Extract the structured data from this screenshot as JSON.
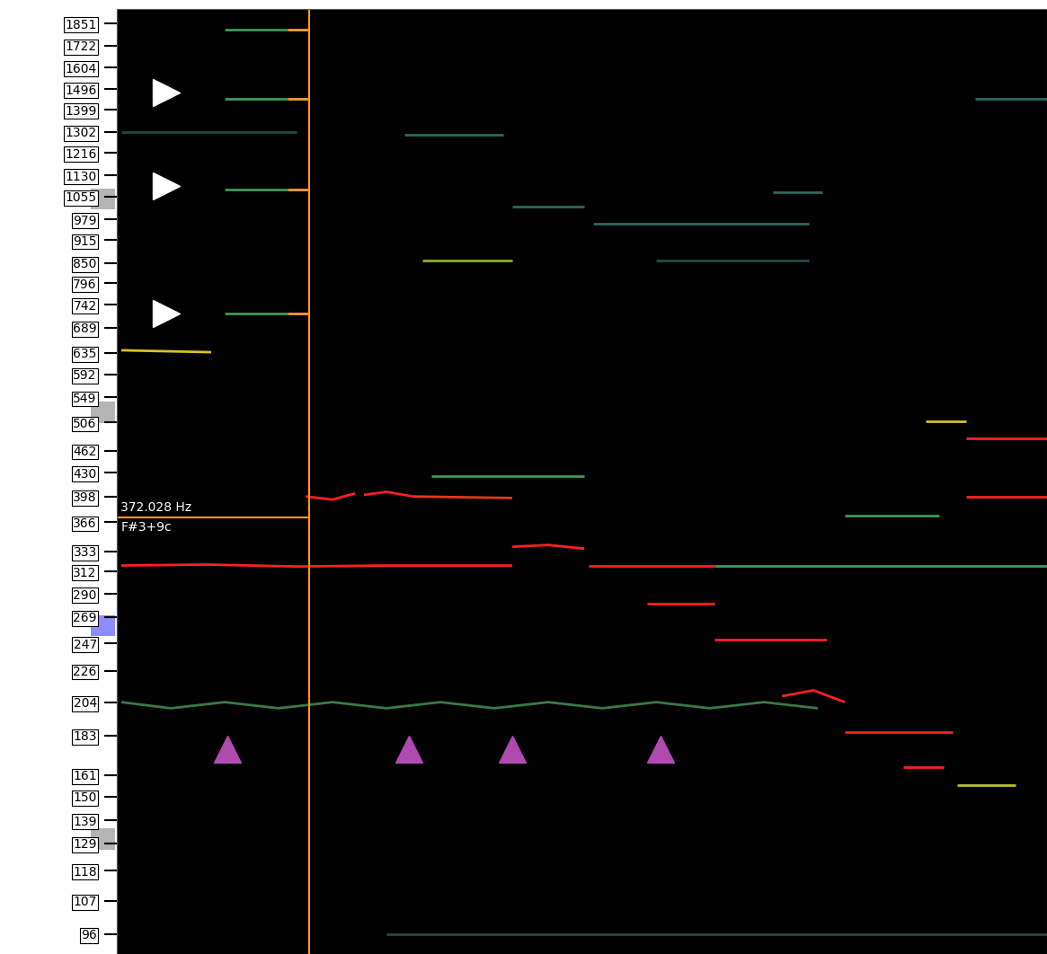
{
  "chart_data": {
    "type": "pitch_spectrogram",
    "log": "y",
    "tick_labels": "y",
    "grid": false,
    "xlim": [
      0,
      1035
    ],
    "ylim": [
      90,
      1940
    ],
    "yticks": [
      1851,
      1722,
      1604,
      1496,
      1399,
      1302,
      1216,
      1130,
      1055,
      979,
      915,
      850,
      796,
      742,
      689,
      635,
      592,
      549,
      506,
      462,
      430,
      398,
      366,
      333,
      312,
      290,
      269,
      247,
      226,
      204,
      183,
      161,
      150,
      139,
      129,
      118,
      107,
      96
    ],
    "highlighted_keys": [
      {
        "value": 1046.5,
        "color": "#b4b4b4"
      },
      {
        "value": 523.3,
        "color": "#b4b4b4"
      },
      {
        "value": 261.6,
        "color": "#8c8cff"
      },
      {
        "value": 130.8,
        "color": "#b4b4b4"
      }
    ],
    "cursor": {
      "x": 214,
      "frequency": 372.028,
      "label": "372.028 Hz",
      "note": "F#3+9c",
      "color": "#ff9a2e"
    },
    "series": [
      {
        "color": "#ff2020",
        "x": [
          5,
          100,
          200,
          300,
          440
        ],
        "values": [
          318,
          319,
          317,
          318,
          318
        ]
      },
      {
        "color": "#ff2020",
        "x": [
          440,
          480,
          520
        ],
        "values": [
          338,
          340,
          336
        ]
      },
      {
        "color": "#ff2020",
        "x": [
          525,
          665
        ],
        "values": [
          318,
          318
        ]
      },
      {
        "color": "#3d9a55",
        "x": [
          665,
          1035
        ],
        "values": [
          318,
          318
        ]
      },
      {
        "color": "#ff2020",
        "x": [
          210,
          240,
          265
        ],
        "values": [
          398,
          394,
          402
        ]
      },
      {
        "color": "#ff2020",
        "x": [
          275,
          300,
          330
        ],
        "values": [
          400,
          404,
          398
        ]
      },
      {
        "color": "#e03a20",
        "x": [
          330,
          440
        ],
        "values": [
          398,
          396
        ]
      },
      {
        "color": "#3d9a55",
        "x": [
          350,
          520
        ],
        "values": [
          425,
          425
        ]
      },
      {
        "color": "#ff2020",
        "x": [
          590,
          665
        ],
        "values": [
          281,
          281
        ]
      },
      {
        "color": "#ff2020",
        "x": [
          665,
          790
        ],
        "values": [
          250,
          250
        ]
      },
      {
        "color": "#ff2020",
        "x": [
          740,
          775,
          810
        ],
        "values": [
          208,
          212,
          204
        ]
      },
      {
        "color": "#ff2020",
        "x": [
          810,
          930
        ],
        "values": [
          185,
          185
        ]
      },
      {
        "color": "#ff2020",
        "x": [
          875,
          920
        ],
        "values": [
          165,
          165
        ]
      },
      {
        "color": "#b8c030",
        "x": [
          935,
          1000
        ],
        "values": [
          156,
          156
        ]
      },
      {
        "color": "#3d9a55",
        "x": [
          810,
          915
        ],
        "values": [
          374,
          374
        ]
      },
      {
        "color": "#d8c020",
        "x": [
          900,
          945
        ],
        "values": [
          508,
          508
        ]
      },
      {
        "color": "#ff2020",
        "x": [
          945,
          1035
        ],
        "values": [
          480,
          480
        ]
      },
      {
        "color": "#ff2020",
        "x": [
          945,
          1035
        ],
        "values": [
          398,
          398
        ]
      },
      {
        "color": "#3d9a55",
        "x": [
          120,
          190
        ],
        "values": [
          1815,
          1815
        ]
      },
      {
        "color": "#ff9a2e",
        "x": [
          190,
          214
        ],
        "values": [
          1815,
          1815
        ]
      },
      {
        "color": "#3d9a55",
        "x": [
          120,
          190
        ],
        "values": [
          1450,
          1450
        ]
      },
      {
        "color": "#ff9a2e",
        "x": [
          190,
          214
        ],
        "values": [
          1450,
          1450
        ]
      },
      {
        "color": "#3d9a55",
        "x": [
          120,
          190
        ],
        "values": [
          1080,
          1080
        ]
      },
      {
        "color": "#ff9a2e",
        "x": [
          190,
          214
        ],
        "values": [
          1080,
          1080
        ]
      },
      {
        "color": "#3d9a55",
        "x": [
          120,
          190
        ],
        "values": [
          722,
          722
        ]
      },
      {
        "color": "#ff9a2e",
        "x": [
          190,
          214
        ],
        "values": [
          722,
          722
        ]
      },
      {
        "color": "#d8c020",
        "x": [
          5,
          105
        ],
        "values": [
          640,
          636
        ]
      },
      {
        "color": "#2a6a60",
        "x": [
          320,
          430
        ],
        "values": [
          1290,
          1290
        ]
      },
      {
        "color": "#2a6a60",
        "x": [
          440,
          520
        ],
        "values": [
          1020,
          1020
        ]
      },
      {
        "color": "#2a6a60",
        "x": [
          530,
          770
        ],
        "values": [
          967,
          967
        ]
      },
      {
        "color": "#8ab030",
        "x": [
          340,
          440
        ],
        "values": [
          856,
          856
        ]
      },
      {
        "color": "#2a6a60",
        "x": [
          730,
          785
        ],
        "values": [
          1070,
          1070
        ]
      },
      {
        "color": "#2a6a60",
        "x": [
          955,
          1035
        ],
        "values": [
          1450,
          1450
        ]
      },
      {
        "color": "#1f4a45",
        "x": [
          600,
          770
        ],
        "values": [
          856,
          856
        ]
      },
      {
        "color": "#1f4a45",
        "x": [
          5,
          200
        ],
        "values": [
          1302,
          1302
        ]
      },
      {
        "color": "#3a7a45",
        "x": [
          5,
          60,
          120,
          180,
          240,
          300,
          360,
          420,
          480,
          540,
          600,
          660,
          720,
          780
        ],
        "values": [
          204,
          200,
          204,
          200,
          204,
          200,
          204,
          200,
          204,
          200,
          204,
          200,
          204,
          200
        ]
      },
      {
        "color": "#1f4a45",
        "x": [
          300,
          1035
        ],
        "values": [
          96,
          96
        ]
      }
    ],
    "arrows": [
      {
        "color": "#ffffff",
        "marker": "right",
        "x": [
          55,
          55,
          55
        ],
        "values": [
          1478,
          1092,
          721
        ]
      },
      {
        "color": "#b04ab0",
        "marker": "up",
        "x": [
          123,
          325,
          440,
          605
        ],
        "values": [
          175,
          175,
          175,
          175
        ]
      }
    ]
  }
}
